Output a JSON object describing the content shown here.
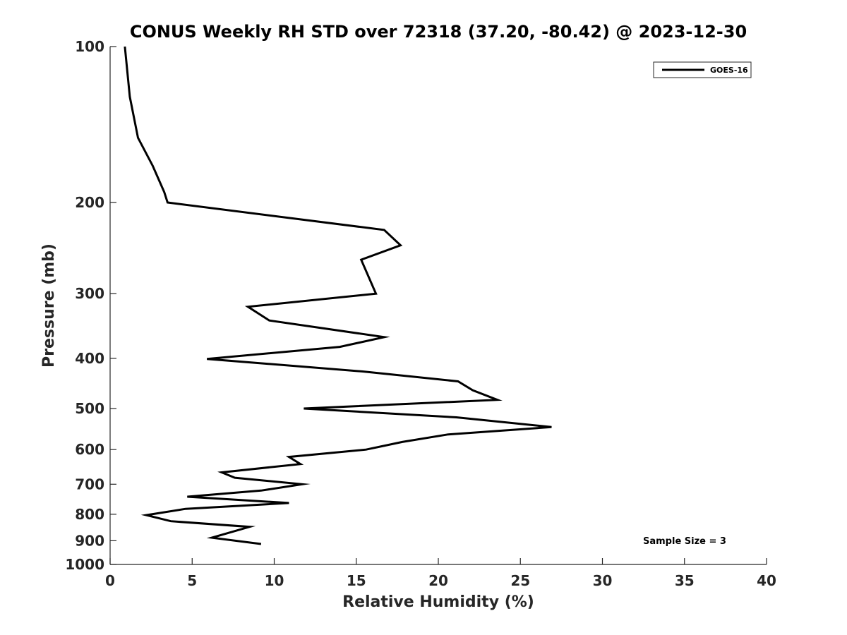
{
  "chart_data": {
    "type": "line",
    "title": "CONUS Weekly RH STD over 72318 (37.20, -80.42) @ 2023-12-30",
    "xlabel": "Relative Humidity (%)",
    "ylabel": "Pressure (mb)",
    "xlim": [
      0,
      40
    ],
    "ylim": [
      100,
      1000
    ],
    "y_scale": "log",
    "y_reversed": true,
    "x_ticks": [
      0,
      5,
      10,
      15,
      20,
      25,
      30,
      35,
      40
    ],
    "y_ticks": [
      100,
      200,
      300,
      400,
      500,
      600,
      700,
      800,
      900,
      1000
    ],
    "grid": false,
    "legend_position": "top-right",
    "series": [
      {
        "name": "GOES-16",
        "color": "#000000",
        "points": [
          {
            "x": 0.9,
            "y": 100
          },
          {
            "x": 1.2,
            "y": 125
          },
          {
            "x": 1.7,
            "y": 150
          },
          {
            "x": 2.6,
            "y": 170
          },
          {
            "x": 3.3,
            "y": 191
          },
          {
            "x": 3.5,
            "y": 200
          },
          {
            "x": 16.7,
            "y": 226
          },
          {
            "x": 17.7,
            "y": 242
          },
          {
            "x": 15.3,
            "y": 258
          },
          {
            "x": 16.2,
            "y": 300
          },
          {
            "x": 8.4,
            "y": 318
          },
          {
            "x": 9.7,
            "y": 338
          },
          {
            "x": 16.7,
            "y": 364
          },
          {
            "x": 14.0,
            "y": 380
          },
          {
            "x": 5.9,
            "y": 401
          },
          {
            "x": 15.4,
            "y": 424
          },
          {
            "x": 21.2,
            "y": 443
          },
          {
            "x": 22.1,
            "y": 461
          },
          {
            "x": 23.6,
            "y": 481
          },
          {
            "x": 11.8,
            "y": 500
          },
          {
            "x": 21.1,
            "y": 520
          },
          {
            "x": 26.9,
            "y": 543
          },
          {
            "x": 20.6,
            "y": 561
          },
          {
            "x": 17.8,
            "y": 580
          },
          {
            "x": 15.6,
            "y": 600
          },
          {
            "x": 10.9,
            "y": 620
          },
          {
            "x": 11.6,
            "y": 640
          },
          {
            "x": 6.8,
            "y": 664
          },
          {
            "x": 7.6,
            "y": 680
          },
          {
            "x": 11.7,
            "y": 700
          },
          {
            "x": 9.2,
            "y": 720
          },
          {
            "x": 4.7,
            "y": 740
          },
          {
            "x": 10.9,
            "y": 761
          },
          {
            "x": 4.6,
            "y": 781
          },
          {
            "x": 2.2,
            "y": 803
          },
          {
            "x": 3.7,
            "y": 825
          },
          {
            "x": 8.5,
            "y": 846
          },
          {
            "x": 6.2,
            "y": 888
          },
          {
            "x": 9.2,
            "y": 913
          }
        ]
      }
    ],
    "annotations": [
      "Sample Size = 3"
    ]
  }
}
